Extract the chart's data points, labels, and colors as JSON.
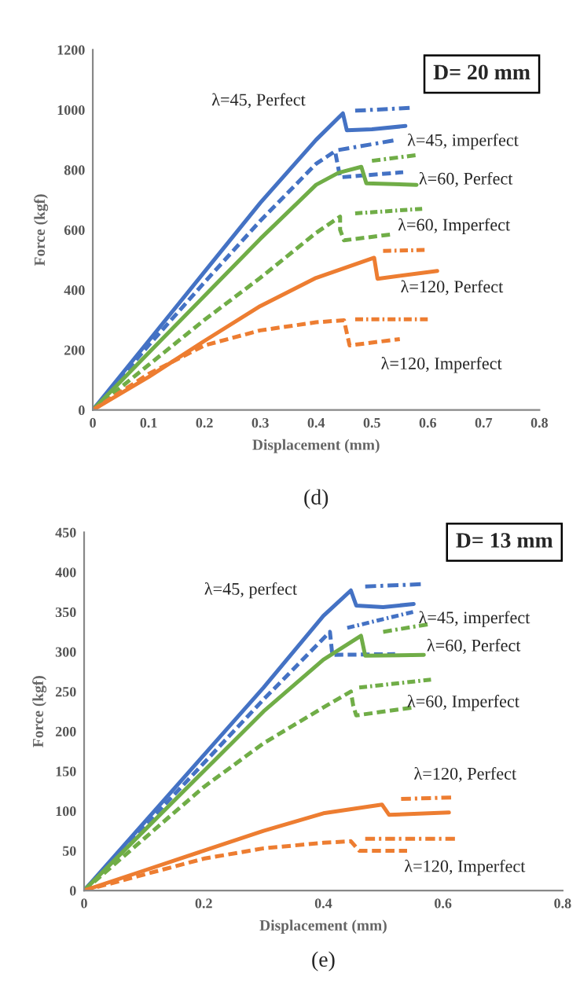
{
  "chart_data": [
    {
      "type": "line",
      "xlabel": "Displacement (mm)",
      "ylabel": "Force (kgf)",
      "xlim": [
        0,
        0.8
      ],
      "ylim": [
        0,
        1200
      ],
      "xticks": [
        0,
        0.1,
        0.2,
        0.3,
        0.4,
        0.5,
        0.6,
        0.7,
        0.8
      ],
      "yticks": [
        0,
        200,
        400,
        600,
        800,
        1000,
        1200
      ],
      "grid": false,
      "legend": false,
      "series": [
        {
          "color": "#4472c4",
          "line_style": "solid",
          "x": [
            0,
            0.1,
            0.2,
            0.3,
            0.4,
            0.448,
            0.455,
            0.5,
            0.56
          ],
          "values": [
            0,
            230,
            460,
            690,
            900,
            988,
            932,
            935,
            946
          ]
        },
        {
          "color": "#4472c4",
          "line_style": "dashdot",
          "x": [
            0.47,
            0.575
          ],
          "values": [
            997,
            1007
          ]
        },
        {
          "color": "#4472c4",
          "line_style": "dashed",
          "x": [
            0,
            0.1,
            0.2,
            0.3,
            0.4,
            0.434,
            0.443,
            0.556
          ],
          "values": [
            0,
            215,
            425,
            630,
            820,
            862,
            775,
            792
          ]
        },
        {
          "color": "#4472c4",
          "line_style": "dashdot",
          "x": [
            0.44,
            0.546
          ],
          "values": [
            866,
            900
          ]
        },
        {
          "color": "#70ad47",
          "line_style": "solid",
          "x": [
            0,
            0.1,
            0.2,
            0.3,
            0.4,
            0.44,
            0.481,
            0.49,
            0.58
          ],
          "values": [
            0,
            190,
            380,
            570,
            750,
            790,
            810,
            755,
            750
          ]
        },
        {
          "color": "#70ad47",
          "line_style": "dashdot",
          "x": [
            0.5,
            0.584
          ],
          "values": [
            830,
            850
          ]
        },
        {
          "color": "#70ad47",
          "line_style": "dashed",
          "x": [
            0,
            0.1,
            0.2,
            0.3,
            0.4,
            0.443,
            0.443,
            0.45,
            0.54
          ],
          "values": [
            0,
            150,
            300,
            440,
            590,
            644,
            600,
            565,
            586
          ]
        },
        {
          "color": "#70ad47",
          "line_style": "dashdot",
          "x": [
            0.47,
            0.59
          ],
          "values": [
            655,
            670
          ]
        },
        {
          "color": "#ed7d31",
          "line_style": "solid",
          "x": [
            0,
            0.1,
            0.2,
            0.3,
            0.4,
            0.504,
            0.51,
            0.617
          ],
          "values": [
            0,
            110,
            230,
            346,
            440,
            507,
            437,
            463
          ]
        },
        {
          "color": "#ed7d31",
          "line_style": "dashdot",
          "x": [
            0.52,
            0.6
          ],
          "values": [
            530,
            533
          ]
        },
        {
          "color": "#ed7d31",
          "line_style": "dashed",
          "x": [
            0,
            0.1,
            0.2,
            0.3,
            0.4,
            0.45,
            0.46,
            0.55
          ],
          "values": [
            0,
            120,
            215,
            265,
            292,
            299,
            215,
            236
          ]
        },
        {
          "color": "#ed7d31",
          "line_style": "dashdot",
          "x": [
            0.47,
            0.6
          ],
          "values": [
            302,
            302
          ]
        }
      ],
      "annotations": [
        "D= 20 mm",
        "(d)",
        "λ=45, Perfect",
        "λ=45, imperfect",
        "λ=60, Perfect",
        "λ=60, Imperfect",
        "λ=120, Perfect",
        "λ=120, Imperfect"
      ]
    },
    {
      "type": "line",
      "xlabel": "Displacement (mm)",
      "ylabel": "Force (kgf)",
      "xlim": [
        0,
        0.8
      ],
      "ylim": [
        0,
        450
      ],
      "xticks": [
        0,
        0.2,
        0.4,
        0.6,
        0.8
      ],
      "yticks": [
        0,
        50,
        100,
        150,
        200,
        250,
        300,
        350,
        400,
        450
      ],
      "grid": false,
      "legend": false,
      "series": [
        {
          "color": "#4472c4",
          "line_style": "solid",
          "x": [
            0,
            0.1,
            0.2,
            0.3,
            0.4,
            0.446,
            0.455,
            0.5,
            0.551
          ],
          "values": [
            0,
            85,
            170,
            255,
            345,
            377,
            358,
            356,
            360
          ]
        },
        {
          "color": "#4472c4",
          "line_style": "dashdot",
          "x": [
            0.47,
            0.57
          ],
          "values": [
            382,
            385
          ]
        },
        {
          "color": "#4472c4",
          "line_style": "dashed",
          "x": [
            0,
            0.1,
            0.2,
            0.3,
            0.411,
            0.415,
            0.52
          ],
          "values": [
            0,
            80,
            160,
            240,
            325,
            296,
            297
          ]
        },
        {
          "color": "#4472c4",
          "line_style": "dashdot",
          "x": [
            0.44,
            0.55
          ],
          "values": [
            330,
            350
          ]
        },
        {
          "color": "#70ad47",
          "line_style": "solid",
          "x": [
            0,
            0.1,
            0.2,
            0.3,
            0.4,
            0.463,
            0.47,
            0.568
          ],
          "values": [
            0,
            75,
            150,
            225,
            290,
            320,
            295,
            296
          ]
        },
        {
          "color": "#70ad47",
          "line_style": "dashdot",
          "x": [
            0.5,
            0.58
          ],
          "values": [
            325,
            335
          ]
        },
        {
          "color": "#70ad47",
          "line_style": "dashed",
          "x": [
            0,
            0.1,
            0.2,
            0.3,
            0.4,
            0.446,
            0.45,
            0.455,
            0.55
          ],
          "values": [
            0,
            65,
            130,
            185,
            230,
            250,
            232,
            220,
            230
          ]
        },
        {
          "color": "#70ad47",
          "line_style": "dashdot",
          "x": [
            0.46,
            0.58
          ],
          "values": [
            255,
            265
          ]
        },
        {
          "color": "#ed7d31",
          "line_style": "solid",
          "x": [
            0,
            0.1,
            0.2,
            0.3,
            0.4,
            0.498,
            0.51,
            0.61
          ],
          "values": [
            0,
            25,
            50,
            75,
            97,
            108,
            95,
            98
          ]
        },
        {
          "color": "#ed7d31",
          "line_style": "dashdot",
          "x": [
            0.53,
            0.62
          ],
          "values": [
            115,
            117
          ]
        },
        {
          "color": "#ed7d31",
          "line_style": "dashed",
          "x": [
            0,
            0.1,
            0.2,
            0.3,
            0.4,
            0.446,
            0.46,
            0.54
          ],
          "values": [
            0,
            20,
            40,
            53,
            60,
            62,
            50,
            50
          ]
        },
        {
          "color": "#ed7d31",
          "line_style": "dashdot",
          "x": [
            0.47,
            0.62
          ],
          "values": [
            65,
            65
          ]
        }
      ],
      "annotations": [
        "D= 13 mm",
        "(e)",
        "λ=45, perfect",
        "λ=45, imperfect",
        "λ=60, Perfect",
        "λ=60, Imperfect",
        "λ=120, Perfect",
        "λ=120, Imperfect"
      ]
    }
  ]
}
